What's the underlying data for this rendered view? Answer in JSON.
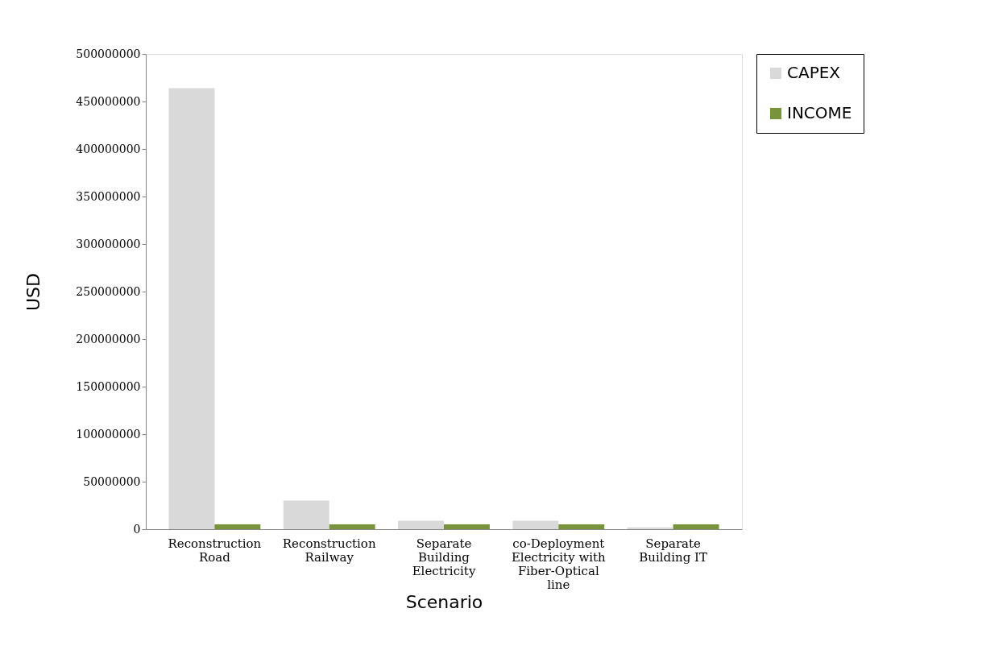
{
  "chart_data": {
    "type": "bar",
    "xlabel": "Scenario",
    "ylabel": "USD",
    "categories": [
      "Reconstruction Road",
      "Reconstruction Railway",
      "Separate Building Electricity",
      "co-Deployment Electricity with Fiber-Optical line",
      "Separate Building IT"
    ],
    "series": [
      {
        "name": "CAPEX",
        "color": "#d9d9d9",
        "values": [
          464000000,
          30000000,
          9000000,
          9000000,
          2000000
        ]
      },
      {
        "name": "INCOME",
        "color": "#77933c",
        "values": [
          5000000,
          5000000,
          5000000,
          5000000,
          5000000
        ]
      }
    ],
    "ylim": [
      0,
      500000000
    ],
    "yticks": [
      0,
      50000000,
      100000000,
      150000000,
      200000000,
      250000000,
      300000000,
      350000000,
      400000000,
      450000000,
      500000000
    ],
    "grid": false,
    "legend": "right"
  }
}
